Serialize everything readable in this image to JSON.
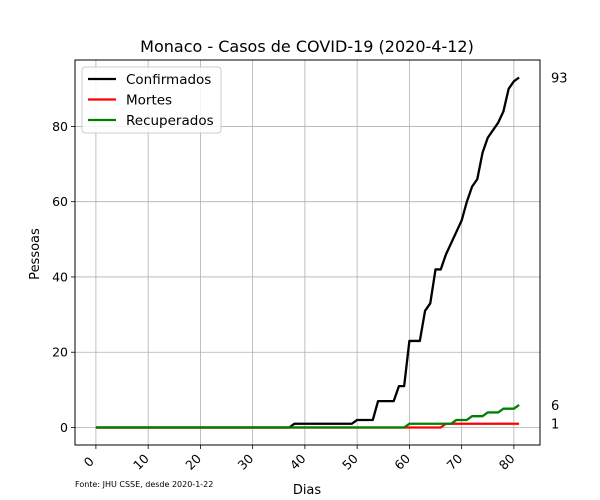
{
  "chart_data": {
    "type": "line",
    "title": "Monaco - Casos de COVID-19 (2020-4-12)",
    "xlabel": "Dias",
    "ylabel": "Pessoas",
    "xlim": [
      -4,
      85
    ],
    "ylim": [
      -4.65,
      97.65
    ],
    "xticks": [
      0,
      10,
      20,
      30,
      40,
      50,
      60,
      70,
      80
    ],
    "yticks": [
      0,
      20,
      40,
      60,
      80
    ],
    "grid": true,
    "legend_position": "top-left",
    "source_note": "Fonte: JHU CSSE, desde 2020-1-22",
    "series": [
      {
        "name": "Confirmados",
        "color": "#000000",
        "end_label": "93",
        "x": [
          0,
          37,
          38,
          49,
          50,
          53,
          54,
          57,
          58,
          59,
          60,
          61,
          62,
          63,
          64,
          65,
          66,
          67,
          68,
          69,
          70,
          71,
          72,
          73,
          74,
          75,
          76,
          77,
          78,
          79,
          80,
          81
        ],
        "y": [
          0,
          0,
          1,
          1,
          2,
          2,
          7,
          7,
          11,
          11,
          23,
          23,
          23,
          31,
          33,
          42,
          42,
          46,
          49,
          52,
          55,
          60,
          64,
          66,
          73,
          77,
          79,
          81,
          84,
          90,
          92,
          93
        ]
      },
      {
        "name": "Mortes",
        "color": "#ff0000",
        "end_label": "1",
        "x": [
          0,
          66,
          67,
          81
        ],
        "y": [
          0,
          0,
          1,
          1
        ]
      },
      {
        "name": "Recuperados",
        "color": "#008000",
        "end_label": "6",
        "x": [
          0,
          59,
          60,
          68,
          69,
          71,
          72,
          74,
          75,
          77,
          78,
          80,
          81
        ],
        "y": [
          0,
          0,
          1,
          1,
          2,
          2,
          3,
          3,
          4,
          4,
          5,
          5,
          6
        ]
      }
    ]
  }
}
